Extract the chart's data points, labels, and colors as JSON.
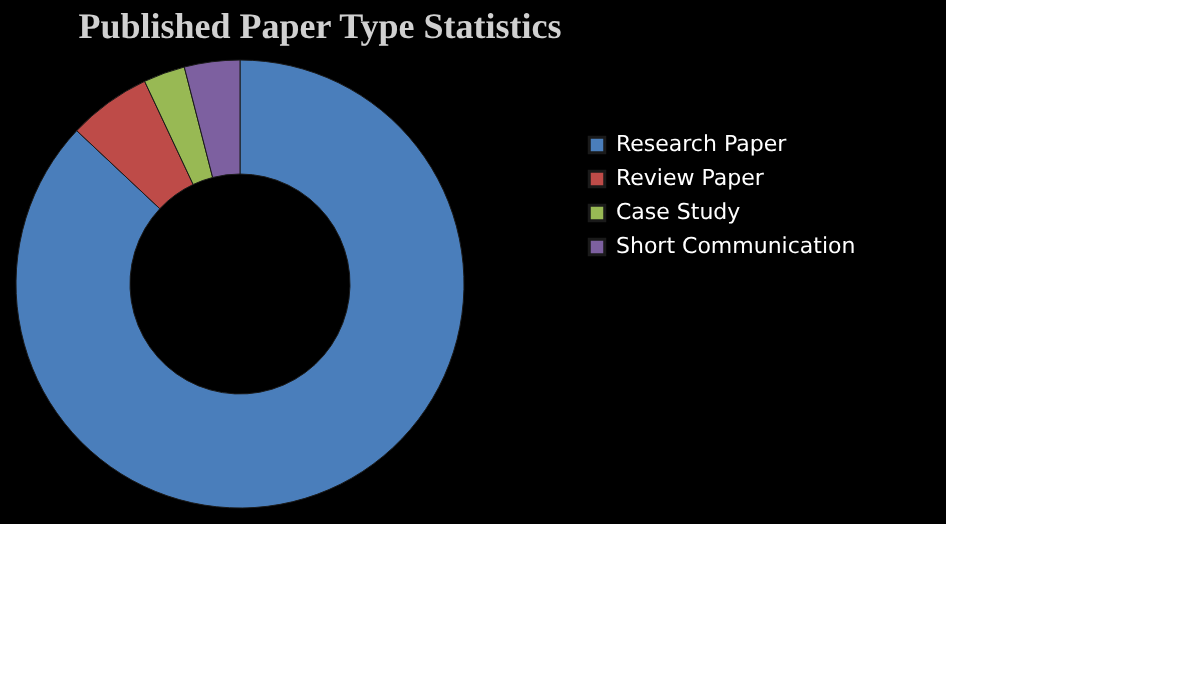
{
  "chart_data": {
    "type": "donut",
    "title": "Published Paper Type Statistics",
    "categories": [
      "Research Paper",
      "Review Paper",
      "Case Study",
      "Short Communication"
    ],
    "values": [
      87,
      6,
      3,
      4
    ],
    "colors": [
      "#4a7ebb",
      "#be4b48",
      "#98b954",
      "#7d60a0"
    ],
    "legend": "right"
  }
}
